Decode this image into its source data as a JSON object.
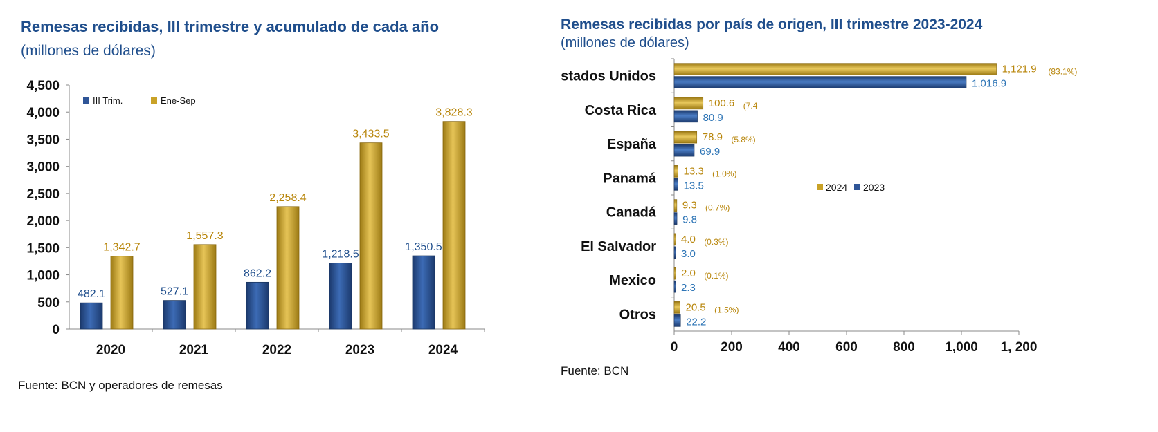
{
  "left": {
    "title": "Remesas recibidas, III trimestre y acumulado de cada año",
    "subtitle": "(millones de dólares)",
    "source": "Fuente: BCN y operadores de remesas"
  },
  "right": {
    "title": "Remesas recibidas por país de origen, III trimestre 2023-2024",
    "subtitle": "(millones de dólares)",
    "source": "Fuente: BCN"
  },
  "colors": {
    "blue": "#2f5597",
    "gold": "#c9a227",
    "blue_label": "#1f4e8c",
    "gold_label": "#b8860b",
    "country_blue_label": "#2e75b6"
  },
  "chart_data": [
    {
      "type": "bar",
      "categories": [
        "2020",
        "2021",
        "2022",
        "2023",
        "2024"
      ],
      "series": [
        {
          "name": "III Trim.",
          "values": [
            482.1,
            527.1,
            862.2,
            1218.5,
            1350.5
          ],
          "labels": [
            "482.1",
            "527.1",
            "862.2",
            "1,218.5",
            "1,350.5"
          ]
        },
        {
          "name": "Ene-Sep",
          "values": [
            1342.7,
            1557.3,
            2258.4,
            3433.5,
            3828.3
          ],
          "labels": [
            "1,342.7",
            "1,557.3",
            "2,258.4",
            "3,433.5",
            "3,828.3"
          ]
        }
      ],
      "ylim": [
        0,
        4500
      ],
      "yticks": [
        0,
        500,
        1000,
        1500,
        2000,
        2500,
        3000,
        3500,
        4000,
        4500
      ],
      "ytick_labels": [
        "0",
        "500",
        "1,000",
        "1,500",
        "2,000",
        "2,500",
        "3,000",
        "3,500",
        "4,000",
        "4,500"
      ],
      "legend": "top-left"
    },
    {
      "type": "bar",
      "orientation": "horizontal",
      "categories": [
        "Estados Unidos",
        "Costa Rica",
        "España",
        "Panamá",
        "Canadá",
        "El Salvador",
        "Mexico",
        "Otros"
      ],
      "series": [
        {
          "name": "2024",
          "values": [
            1121.9,
            100.6,
            78.9,
            13.3,
            9.3,
            4.0,
            2.0,
            20.5
          ],
          "labels": [
            "1,121.9",
            "100.6",
            "78.9",
            "13.3",
            "9.3",
            "4.0",
            "2.0",
            "20.5"
          ],
          "shares": [
            "(83.1%)",
            "(7.4",
            "(5.8%)",
            "(1.0%)",
            "(0.7%)",
            "(0.3%)",
            "(0.1%)",
            "(1.5%)"
          ]
        },
        {
          "name": "2023",
          "values": [
            1016.9,
            80.9,
            69.9,
            13.5,
            9.8,
            3.0,
            2.3,
            22.2
          ],
          "labels": [
            "1,016.9",
            "80.9",
            "69.9",
            "13.5",
            "9.8",
            "3.0",
            "2.3",
            "22.2"
          ]
        }
      ],
      "xlim": [
        0,
        1200
      ],
      "xticks": [
        0,
        200,
        400,
        600,
        800,
        1000,
        1200
      ],
      "xtick_labels": [
        "0",
        "200",
        "400",
        "600",
        "800",
        "1,000",
        "1, 200"
      ],
      "legend": "center-right"
    }
  ]
}
